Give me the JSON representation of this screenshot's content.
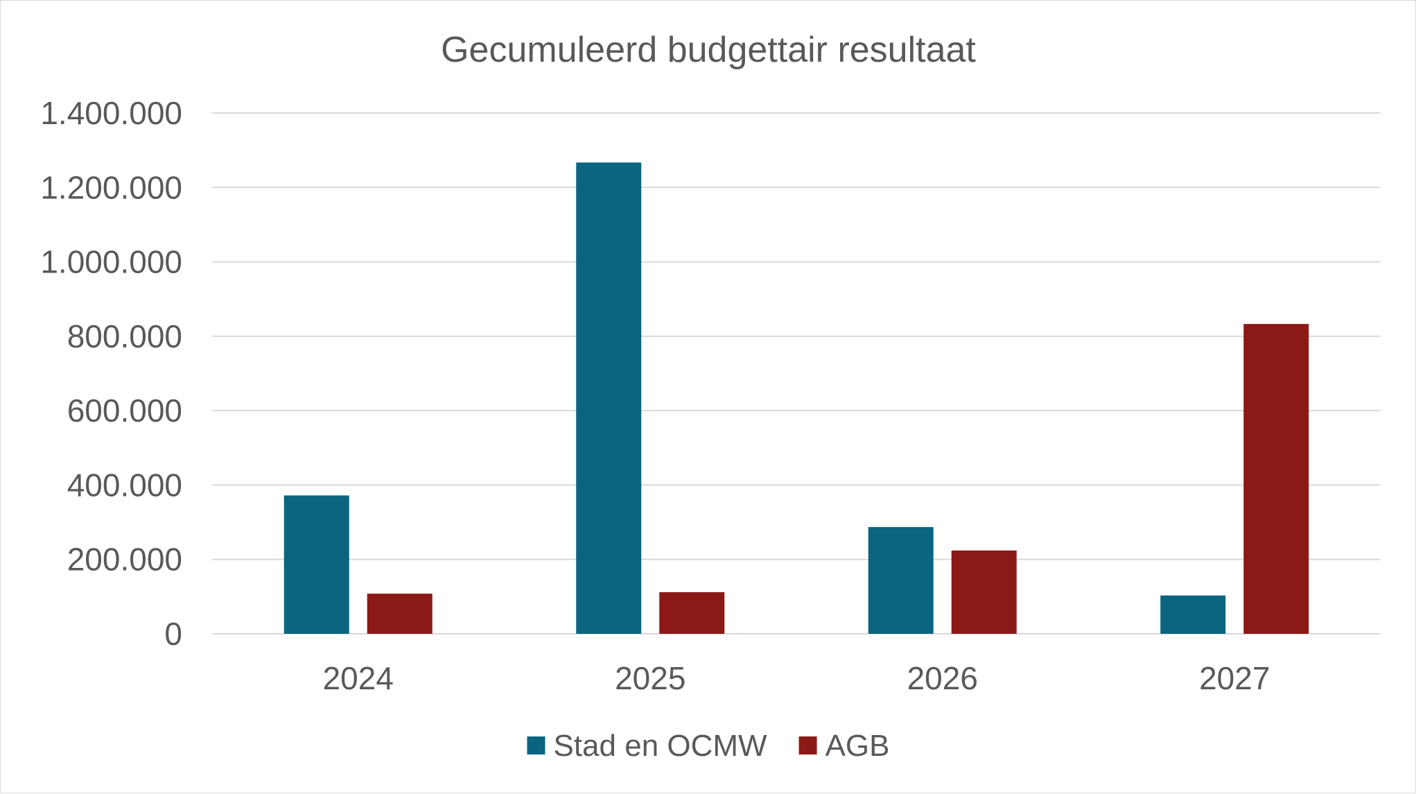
{
  "chart_data": {
    "type": "bar",
    "title": "Gecumuleerd budgettair resultaat",
    "categories": [
      "2024",
      "2025",
      "2026",
      "2027"
    ],
    "series": [
      {
        "name": "Stad en OCMW",
        "color": "#0b6480",
        "values": [
          372000,
          1267000,
          287000,
          103000
        ]
      },
      {
        "name": "AGB",
        "color": "#8b1a17",
        "values": [
          108000,
          112000,
          224000,
          833000
        ]
      }
    ],
    "ylim": [
      0,
      1400000
    ],
    "yticks": [
      0,
      200000,
      400000,
      600000,
      800000,
      1000000,
      1200000,
      1400000
    ],
    "ytick_labels": [
      "0",
      "200.000",
      "400.000",
      "600.000",
      "800.000",
      "1.000.000",
      "1.200.000",
      "1.400.000"
    ],
    "grid": true,
    "legend_position": "bottom",
    "gridline_color": "#d9d9d9",
    "text_color": "#595959"
  }
}
